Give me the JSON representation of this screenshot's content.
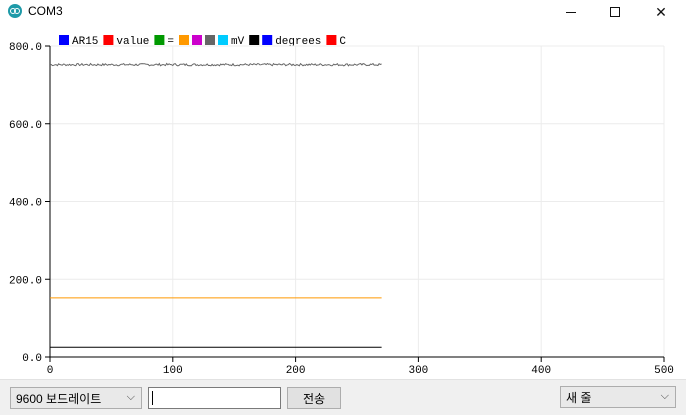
{
  "window": {
    "title": "COM3",
    "minimize_glyph": "",
    "close_glyph": "✕"
  },
  "legend": [
    {
      "label": "AR15",
      "color": "#0000ff"
    },
    {
      "label": "value",
      "color": "#ff0000"
    },
    {
      "label": "=",
      "color": "#009900"
    },
    {
      "label": "",
      "color": "#ff9900"
    },
    {
      "label": "",
      "color": "#cc00cc"
    },
    {
      "label": "",
      "color": "#666666"
    },
    {
      "label": "mV",
      "color": "#00ccff"
    },
    {
      "label": "",
      "color": "#000000"
    },
    {
      "label": "degrees",
      "color": "#0000ff"
    },
    {
      "label": "C",
      "color": "#ff0000"
    }
  ],
  "chart_data": {
    "type": "line",
    "xlim": [
      0,
      500
    ],
    "ylim": [
      0,
      800
    ],
    "x_ticks": [
      0,
      100,
      200,
      300,
      400,
      500
    ],
    "y_ticks": [
      "0.0",
      "200.0",
      "400.0",
      "600.0",
      "800.0"
    ],
    "grid": true,
    "series": [
      {
        "color": "#666666",
        "x_range": [
          0,
          270
        ],
        "base": 752,
        "noise": 3
      },
      {
        "color": "#ff9900",
        "x_range": [
          0,
          270
        ],
        "base": 152,
        "noise": 0
      },
      {
        "color": "#000000",
        "x_range": [
          0,
          270
        ],
        "base": 25,
        "noise": 0
      }
    ]
  },
  "controls": {
    "baud_rate": "9600 보드레이트",
    "send_input_value": "",
    "send_button": "전송",
    "line_ending": "새 줄",
    "chevron": "⌵"
  }
}
